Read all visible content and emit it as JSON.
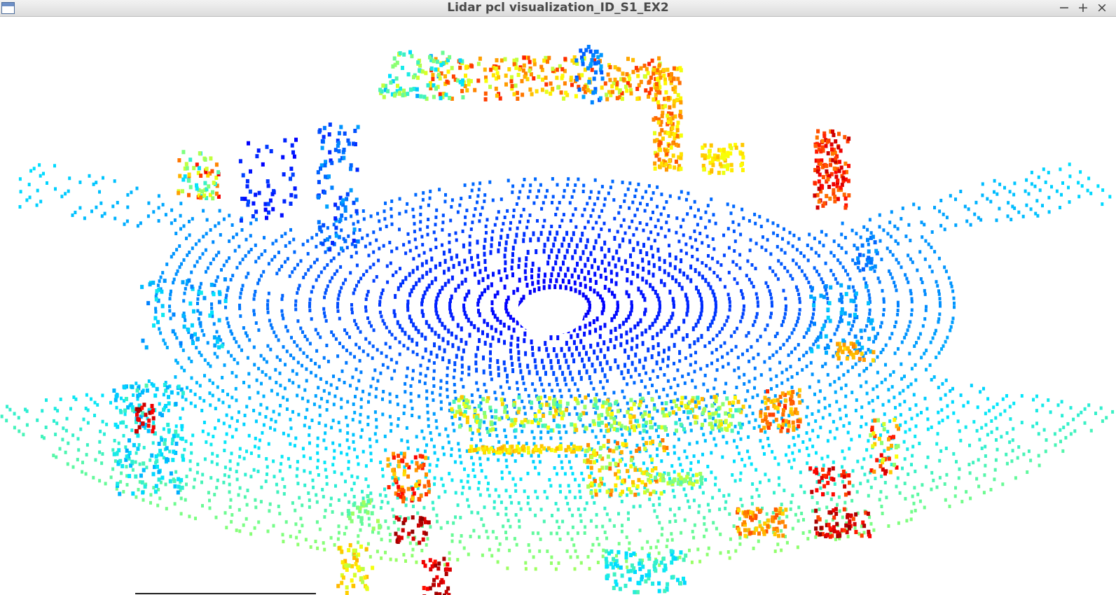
{
  "window": {
    "title": "Lidar pcl visualization_ID_S1_EX2",
    "controls": {
      "minimize": "−",
      "maximize": "+",
      "close": "×"
    }
  },
  "viewer": {
    "background": "#ffffff",
    "colormap": [
      "#00008b",
      "#0000ff",
      "#0080ff",
      "#00e5ff",
      "#7fff7f",
      "#ffff00",
      "#ff8000",
      "#ff0000",
      "#8b0000"
    ]
  }
}
